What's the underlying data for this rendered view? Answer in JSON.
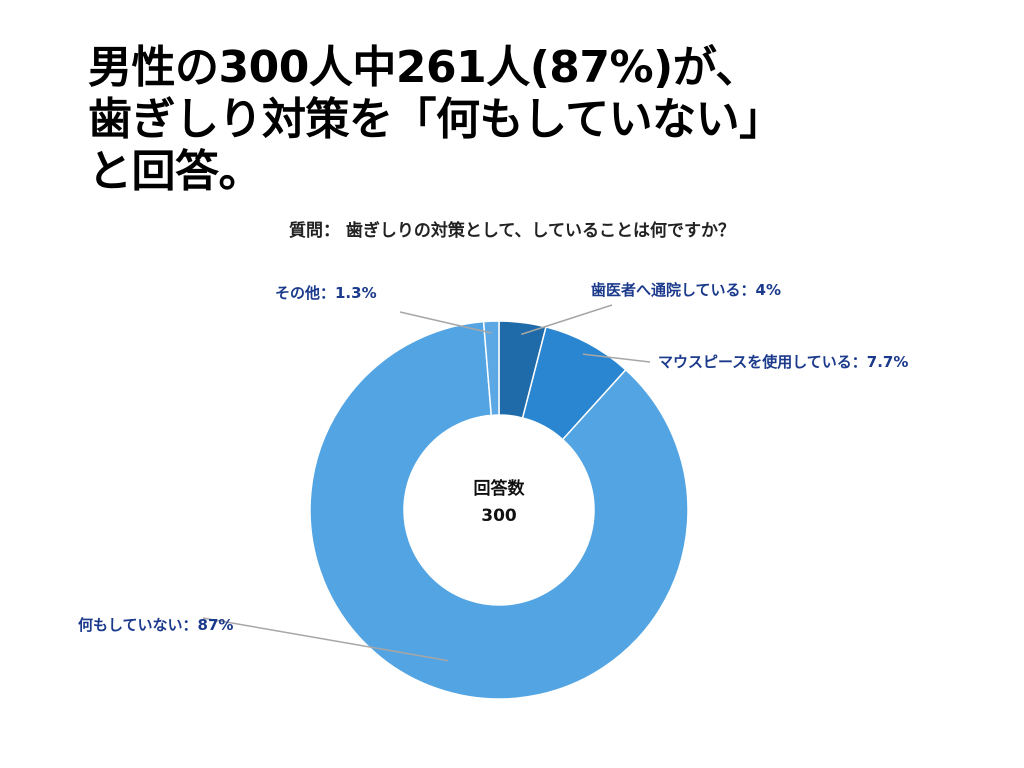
{
  "headline": {
    "line1": "男性の300人中261人(87%)が、",
    "line2": "歯ぎしり対策を「何もしていない」",
    "line3": "と回答。"
  },
  "colors": {
    "label_text": "#1b3a8c",
    "leader_line": "#a6a6a6",
    "donut_gap": "#ffffff"
  },
  "chart_data": {
    "type": "pie",
    "title": "質問： 歯ぎしりの対策として、していることは何ですか？",
    "center_label": "回答数",
    "center_value": "300",
    "legend": "none",
    "slices": [
      {
        "name": "歯医者へ通院している",
        "value": 4,
        "label": "歯医者へ通院している：4%",
        "color": "#1f6aa8"
      },
      {
        "name": "マウスピースを使用している",
        "value": 7.7,
        "label": "マウスピースを使用している：7.7%",
        "color": "#2a86d0"
      },
      {
        "name": "何もしていない",
        "value": 87,
        "label": "何もしていない：87%",
        "color": "#53a4e2"
      },
      {
        "name": "その他",
        "value": 1.3,
        "label": "その他：1.3%",
        "color": "#5ba8e4"
      }
    ]
  }
}
